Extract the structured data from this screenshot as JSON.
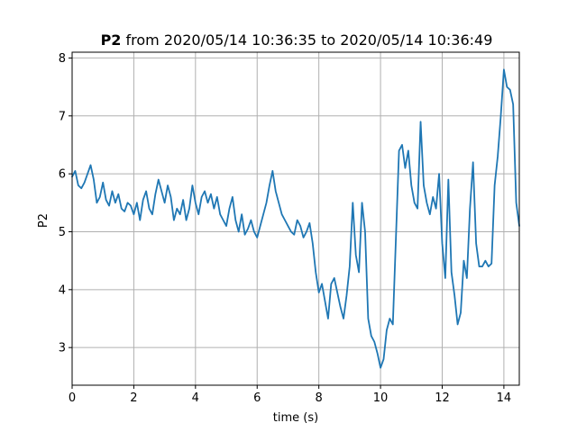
{
  "chart_data": {
    "type": "line",
    "title_bold": "P2",
    "title_rest": " from 2020/05/14 10:36:35 to 2020/05/14 10:36:49",
    "xlabel": "time (s)",
    "ylabel": "P2",
    "xlim": [
      0,
      14.5
    ],
    "ylim": [
      2.35,
      8.1
    ],
    "xticks": [
      0,
      2,
      4,
      6,
      8,
      10,
      12,
      14
    ],
    "xtick_labels": [
      "0",
      "2",
      "4",
      "6",
      "8",
      "10",
      "12",
      "14"
    ],
    "yticks": [
      3,
      4,
      5,
      6,
      7,
      8
    ],
    "ytick_labels": [
      "3",
      "4",
      "5",
      "6",
      "7",
      "8"
    ],
    "grid": true,
    "series": [
      {
        "color": "#1f77b4",
        "x": [
          0.0,
          0.1,
          0.2,
          0.3,
          0.4,
          0.5,
          0.6,
          0.7,
          0.8,
          0.9,
          1.0,
          1.1,
          1.2,
          1.3,
          1.4,
          1.5,
          1.6,
          1.7,
          1.8,
          1.9,
          2.0,
          2.1,
          2.2,
          2.3,
          2.4,
          2.5,
          2.6,
          2.7,
          2.8,
          2.9,
          3.0,
          3.1,
          3.2,
          3.3,
          3.4,
          3.5,
          3.6,
          3.7,
          3.8,
          3.9,
          4.0,
          4.1,
          4.2,
          4.3,
          4.4,
          4.5,
          4.6,
          4.7,
          4.8,
          4.9,
          5.0,
          5.1,
          5.2,
          5.3,
          5.4,
          5.5,
          5.6,
          5.7,
          5.8,
          5.9,
          6.0,
          6.1,
          6.2,
          6.3,
          6.4,
          6.5,
          6.6,
          6.7,
          6.8,
          6.9,
          7.0,
          7.1,
          7.2,
          7.3,
          7.4,
          7.5,
          7.6,
          7.7,
          7.8,
          7.9,
          8.0,
          8.1,
          8.2,
          8.3,
          8.4,
          8.5,
          8.6,
          8.7,
          8.8,
          8.9,
          9.0,
          9.1,
          9.2,
          9.3,
          9.4,
          9.5,
          9.6,
          9.7,
          9.8,
          9.9,
          10.0,
          10.1,
          10.2,
          10.3,
          10.4,
          10.5,
          10.6,
          10.7,
          10.8,
          10.9,
          11.0,
          11.1,
          11.2,
          11.3,
          11.4,
          11.5,
          11.6,
          11.7,
          11.8,
          11.9,
          12.0,
          12.1,
          12.2,
          12.3,
          12.4,
          12.5,
          12.6,
          12.7,
          12.8,
          12.9,
          13.0,
          13.1,
          13.2,
          13.3,
          13.4,
          13.5,
          13.6,
          13.7,
          13.8,
          13.9,
          14.0,
          14.1,
          14.2,
          14.3,
          14.4,
          14.5
        ],
        "y": [
          5.95,
          6.05,
          5.8,
          5.75,
          5.85,
          6.0,
          6.15,
          5.9,
          5.5,
          5.6,
          5.85,
          5.55,
          5.45,
          5.7,
          5.5,
          5.65,
          5.4,
          5.35,
          5.5,
          5.45,
          5.3,
          5.5,
          5.2,
          5.55,
          5.7,
          5.4,
          5.3,
          5.65,
          5.9,
          5.7,
          5.5,
          5.8,
          5.6,
          5.2,
          5.4,
          5.3,
          5.55,
          5.2,
          5.4,
          5.8,
          5.5,
          5.3,
          5.6,
          5.7,
          5.5,
          5.65,
          5.4,
          5.6,
          5.3,
          5.2,
          5.1,
          5.4,
          5.6,
          5.2,
          5.0,
          5.3,
          4.95,
          5.05,
          5.2,
          5.0,
          4.9,
          5.1,
          5.3,
          5.5,
          5.8,
          6.05,
          5.7,
          5.5,
          5.3,
          5.2,
          5.1,
          5.0,
          4.95,
          5.2,
          5.1,
          4.9,
          5.0,
          5.15,
          4.8,
          4.3,
          3.95,
          4.1,
          3.8,
          3.5,
          4.1,
          4.2,
          3.95,
          3.7,
          3.5,
          3.9,
          4.4,
          5.5,
          4.6,
          4.3,
          5.5,
          5.0,
          3.5,
          3.2,
          3.1,
          2.9,
          2.65,
          2.8,
          3.3,
          3.5,
          3.4,
          4.9,
          6.4,
          6.5,
          6.1,
          6.4,
          5.8,
          5.5,
          5.4,
          6.9,
          5.8,
          5.5,
          5.3,
          5.6,
          5.4,
          6.0,
          4.8,
          4.2,
          5.9,
          4.3,
          3.9,
          3.4,
          3.6,
          4.5,
          4.2,
          5.4,
          6.2,
          4.8,
          4.4,
          4.4,
          4.5,
          4.4,
          4.45,
          5.8,
          6.3,
          7.0,
          7.8,
          7.5,
          7.45,
          7.2,
          5.5,
          5.1
        ]
      }
    ]
  }
}
